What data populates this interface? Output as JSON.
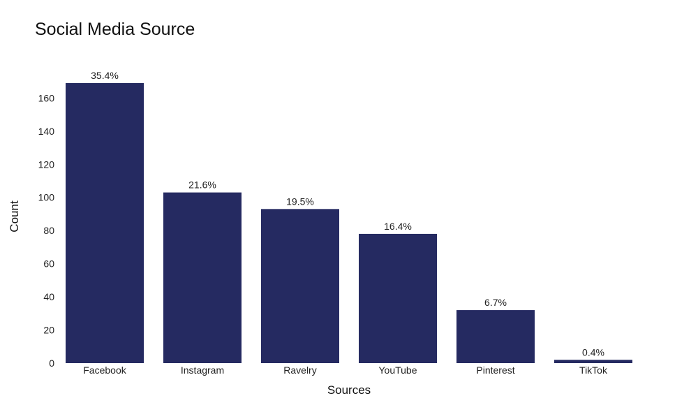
{
  "chart_data": {
    "type": "bar",
    "title": "Social Media Source",
    "xlabel": "Sources",
    "ylabel": "Count",
    "categories": [
      "Facebook",
      "Instagram",
      "Ravelry",
      "YouTube",
      "Pinterest",
      "TikTok"
    ],
    "values": [
      169,
      103,
      93,
      78,
      32,
      2
    ],
    "data_labels": [
      "35.4%",
      "21.6%",
      "19.5%",
      "16.4%",
      "6.7%",
      "0.4%"
    ],
    "ylim": [
      0,
      177
    ],
    "yticks": [
      0,
      20,
      40,
      60,
      80,
      100,
      120,
      140,
      160
    ],
    "bar_color": "#252a61",
    "grid": false,
    "legend": "none"
  }
}
